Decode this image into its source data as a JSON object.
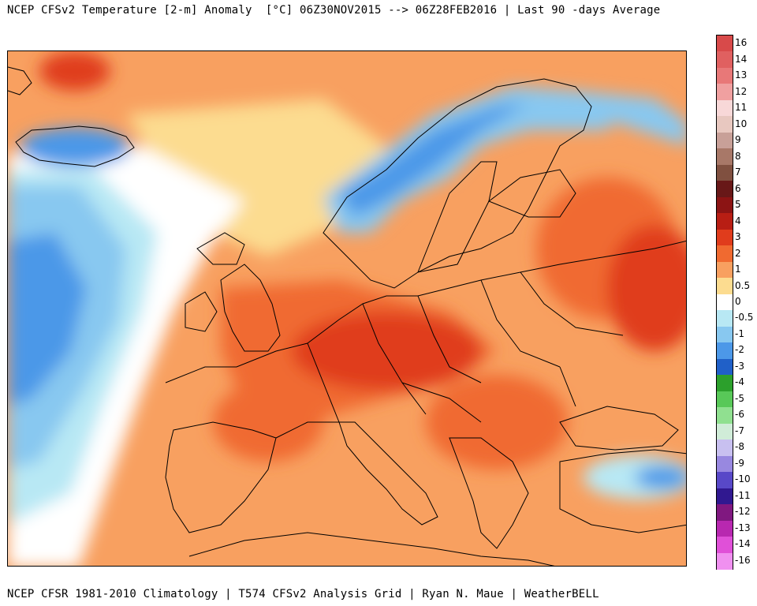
{
  "header": {
    "title": "NCEP CFSv2 Temperature [2-m] Anomaly  [°C] 06Z30NOV2015 --> 06Z28FEB2016 | Last 90 -days Average"
  },
  "footer": {
    "credits": "NCEP CFSR 1981-2010 Climatology | T574 CFSv2 Analysis Grid | Ryan N. Maue | WeatherBELL"
  },
  "legend": {
    "unit": "°C",
    "entries": [
      {
        "label": "16",
        "color": "#d84a4a"
      },
      {
        "label": "14",
        "color": "#e06060"
      },
      {
        "label": "13",
        "color": "#e87878"
      },
      {
        "label": "12",
        "color": "#f0a0a0"
      },
      {
        "label": "11",
        "color": "#f8d8d8"
      },
      {
        "label": "10",
        "color": "#e8c8c0"
      },
      {
        "label": "9",
        "color": "#c8a098"
      },
      {
        "label": "8",
        "color": "#a87868"
      },
      {
        "label": "7",
        "color": "#805040"
      },
      {
        "label": "6",
        "color": "#681818"
      },
      {
        "label": "5",
        "color": "#8c1414"
      },
      {
        "label": "4",
        "color": "#b81e14"
      },
      {
        "label": "3",
        "color": "#e03c1c"
      },
      {
        "label": "2",
        "color": "#f06a30"
      },
      {
        "label": "1",
        "color": "#f8a060"
      },
      {
        "label": "0.5",
        "color": "#fcdc90"
      },
      {
        "label": "0",
        "color": "#ffffff"
      },
      {
        "label": "-0.5",
        "color": "#b8e8f4"
      },
      {
        "label": "-1",
        "color": "#88c8f0"
      },
      {
        "label": "-2",
        "color": "#4c98e8"
      },
      {
        "label": "-3",
        "color": "#2060c8"
      },
      {
        "label": "-4",
        "color": "#2ca02c"
      },
      {
        "label": "-5",
        "color": "#58c858"
      },
      {
        "label": "-6",
        "color": "#90e090"
      },
      {
        "label": "-7",
        "color": "#d0ecd8"
      },
      {
        "label": "-8",
        "color": "#c8c0f0"
      },
      {
        "label": "-9",
        "color": "#9888e0"
      },
      {
        "label": "-10",
        "color": "#5848c8"
      },
      {
        "label": "-11",
        "color": "#301890"
      },
      {
        "label": "-12",
        "color": "#801880"
      },
      {
        "label": "-13",
        "color": "#b828b0"
      },
      {
        "label": "-14",
        "color": "#e050d8"
      },
      {
        "label": "-16",
        "color": "#f090f0"
      }
    ]
  }
}
